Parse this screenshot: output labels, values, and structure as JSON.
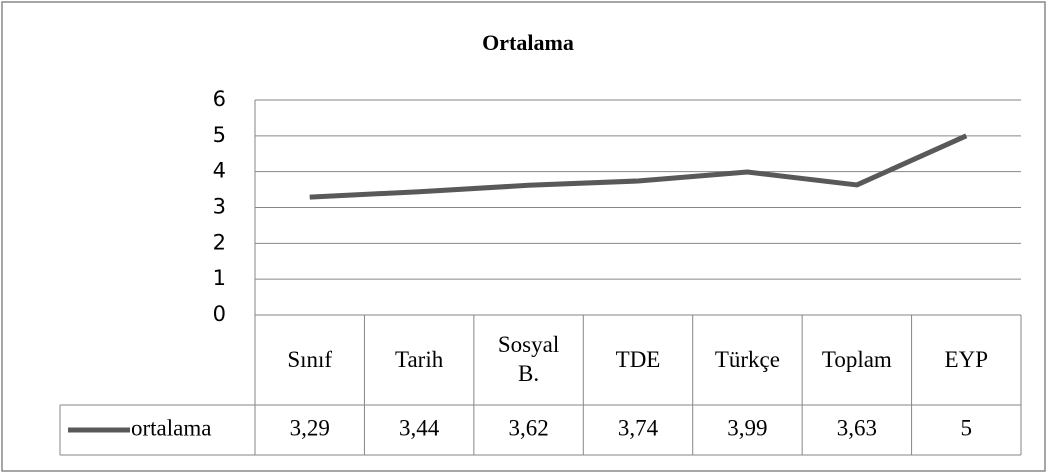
{
  "chart_data": {
    "type": "line",
    "title": "Ortalama",
    "categories": [
      "Sınıf",
      "Tarih",
      "Sosyal B.",
      "TDE",
      "Türkçe",
      "Toplam",
      "EYP"
    ],
    "series": [
      {
        "name": "ortalama",
        "color": "#595959",
        "values": [
          3.29,
          3.44,
          3.62,
          3.74,
          3.99,
          3.63,
          5
        ],
        "value_labels": [
          "3,29",
          "3,44",
          "3,62",
          "3,74",
          "3,99",
          "3,63",
          "5"
        ]
      }
    ],
    "ylim": [
      0,
      6
    ],
    "yticks": [
      0,
      1,
      2,
      3,
      4,
      5,
      6
    ],
    "grid": true
  }
}
